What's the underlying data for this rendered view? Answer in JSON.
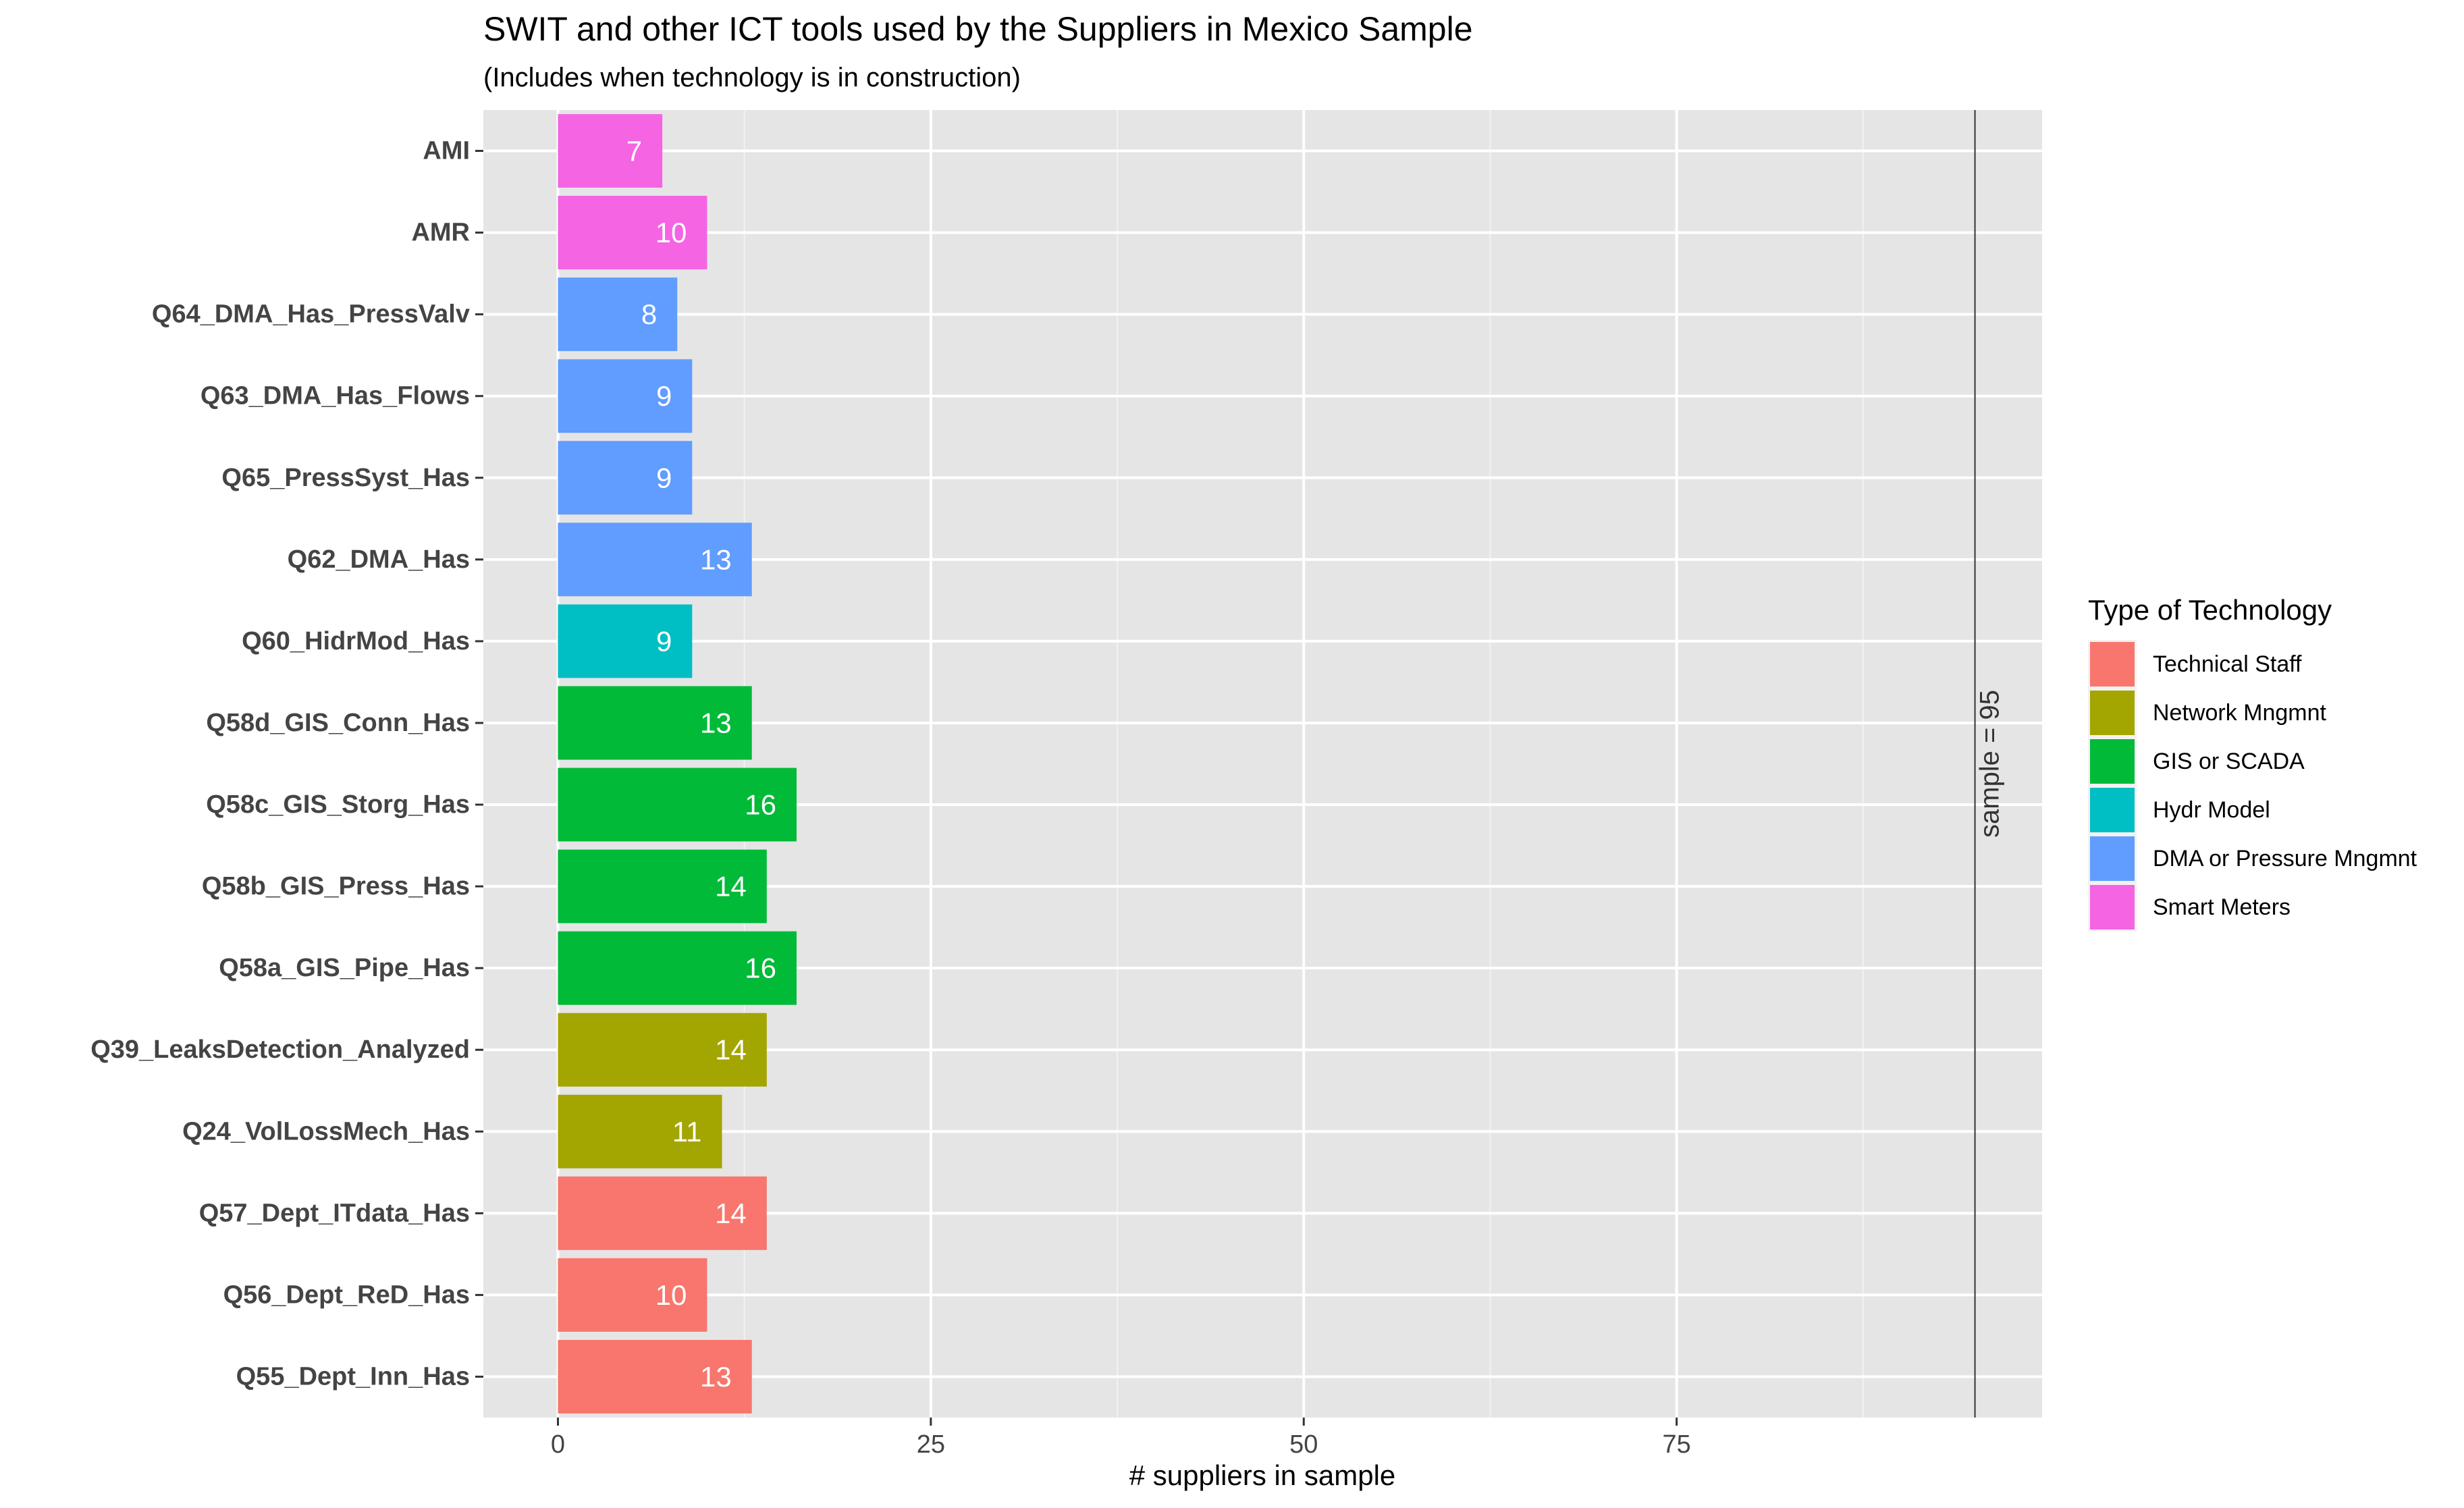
{
  "chart_data": {
    "type": "bar",
    "orientation": "horizontal",
    "title": "SWIT and other ICT tools used by the Suppliers in Mexico Sample",
    "subtitle": "(Includes when technology is in construction)",
    "xlabel": "# suppliers in sample",
    "ylabel": "",
    "xlim": [
      -5,
      99.5
    ],
    "x_ticks": [
      0,
      25,
      50,
      75
    ],
    "x_tick_labels": [
      "0",
      "25",
      "50",
      "75"
    ],
    "grid": true,
    "categories": [
      "AMI",
      "AMR",
      "Q64_DMA_Has_PressValv",
      "Q63_DMA_Has_Flows",
      "Q65_PressSyst_Has",
      "Q62_DMA_Has",
      "Q60_HidrMod_Has",
      "Q58d_GIS_Conn_Has",
      "Q58c_GIS_Storg_Has",
      "Q58b_GIS_Press_Has",
      "Q58a_GIS_Pipe_Has",
      "Q39_LeaksDetection_Analyzed",
      "Q24_VolLossMech_Has",
      "Q57_Dept_ITdata_Has",
      "Q56_Dept_ReD_Has",
      "Q55_Dept_Inn_Has"
    ],
    "values": [
      7,
      10,
      8,
      9,
      9,
      13,
      9,
      13,
      16,
      14,
      16,
      14,
      11,
      14,
      10,
      13
    ],
    "value_labels": [
      "7",
      "10",
      "8",
      "9",
      "9",
      "13",
      "9",
      "13",
      "16",
      "14",
      "16",
      "14",
      "11",
      "14",
      "10",
      "13"
    ],
    "groups": [
      "Smart Meters",
      "Smart Meters",
      "DMA or Pressure Mngmnt",
      "DMA or Pressure Mngmnt",
      "DMA or Pressure Mngmnt",
      "DMA or Pressure Mngmnt",
      "Hydr Model",
      "GIS or SCADA",
      "GIS or SCADA",
      "GIS or SCADA",
      "GIS or SCADA",
      "Network Mngmnt",
      "Network Mngmnt",
      "Technical Staff",
      "Technical Staff",
      "Technical Staff"
    ],
    "reference_line": {
      "x": 95,
      "label": "sample = 95"
    },
    "legend": {
      "title": "Type of Technology",
      "placement": "right",
      "entries": [
        {
          "name": "Technical Staff",
          "color": "#F8766D"
        },
        {
          "name": "Network Mngmnt",
          "color": "#A3A500"
        },
        {
          "name": "GIS or SCADA",
          "color": "#00BA38"
        },
        {
          "name": "Hydr Model",
          "color": "#00BFC4"
        },
        {
          "name": "DMA or Pressure Mngmnt",
          "color": "#619CFF"
        },
        {
          "name": "Smart Meters",
          "color": "#F564E3"
        }
      ]
    }
  }
}
